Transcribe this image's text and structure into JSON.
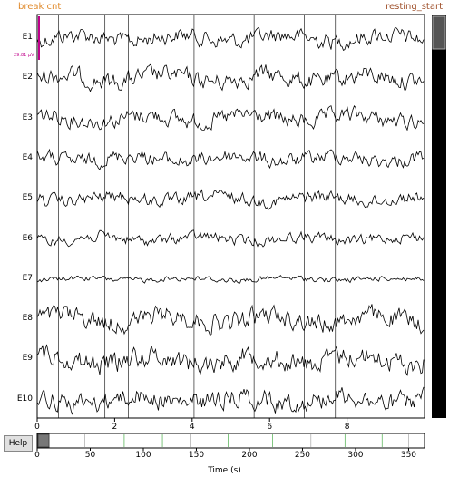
{
  "annotations": {
    "left": "break cnt",
    "right": "resting_start",
    "left_color": "#e08a2c",
    "right_color": "#a0522d"
  },
  "channels": [
    "E1",
    "E2",
    "E3",
    "E4",
    "E5",
    "E6",
    "E7",
    "E8",
    "E9",
    "E10"
  ],
  "scale_label": "29.81 µV",
  "x_ticks": [
    "0",
    "2",
    "4",
    "6",
    "8"
  ],
  "overview_ticks": [
    "0",
    "50",
    "100",
    "150",
    "200",
    "250",
    "300",
    "350"
  ],
  "xlabel": "Time (s)",
  "help_label": "Help",
  "chart_data": {
    "type": "line",
    "title": "",
    "xlabel": "",
    "ylabel": "",
    "xlim": [
      0,
      10
    ],
    "channels": [
      "E1",
      "E2",
      "E3",
      "E4",
      "E5",
      "E6",
      "E7",
      "E8",
      "E9",
      "E10"
    ],
    "vertical_markers_s": [
      0.55,
      1.75,
      2.35,
      3.2,
      4.05,
      5.6,
      6.9,
      7.7
    ],
    "overview": {
      "xlim": [
        0,
        365
      ],
      "window_start_s": 0,
      "window_duration_s": 10,
      "xlabel": "Time (s)"
    }
  },
  "colors": {
    "trace": "#000000",
    "scale_bar": "#c0008b",
    "green_marker": "#2ca02c",
    "scrollbar": "#000000"
  }
}
